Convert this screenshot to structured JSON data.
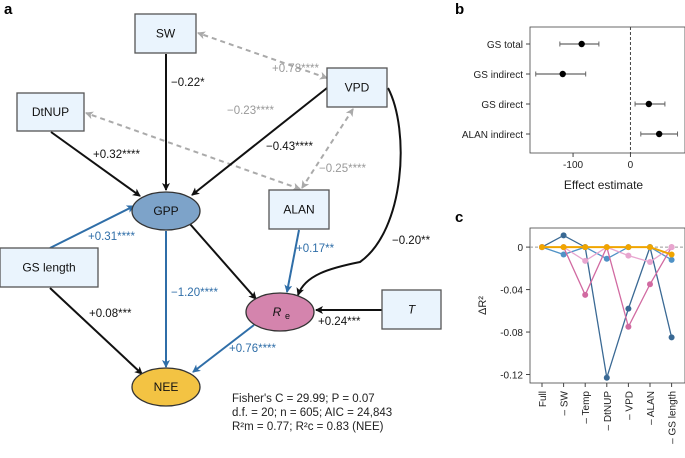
{
  "panels": {
    "a": "a",
    "b": "b",
    "c": "c"
  },
  "colors": {
    "black_path": "#111111",
    "blue_path": "#2f6ea8",
    "correlation_dashed": "#aaaaaa",
    "box_fill": "#eaf4fd",
    "gpp_fill": "#7da3c9",
    "re_fill": "#d484ad",
    "nee_fill": "#f3c343"
  },
  "diagram": {
    "nodes": {
      "sw": "SW",
      "dtnup": "DtNUP",
      "vpd": "VPD",
      "alan": "ALAN",
      "gs_length": "GS length",
      "t": "T",
      "gpp": "GPP",
      "re": "R",
      "re_sub": "e",
      "nee": "NEE"
    },
    "edges": {
      "sw_gpp": "−0.22*",
      "sw_vpd": "+0.78****",
      "dtnup_gpp": "+0.32****",
      "dtnup_alan": "−0.23****",
      "vpd_gpp": "−0.43****",
      "vpd_alan": "−0.25****",
      "vpd_re": "−0.20**",
      "alan_re": "+0.17**",
      "gs_gpp": "+0.31****",
      "gs_nee": "+0.08***",
      "gpp_nee": "−1.20****",
      "t_re": "+0.24***",
      "re_nee": "+0.76****"
    },
    "stats": {
      "line1": "Fisher's C = 29.99; P = 0.07",
      "line2": "d.f. = 20; n = 605; AIC = 24,843",
      "line3": "R²m = 0.77; R²c = 0.83 (NEE)"
    }
  },
  "chart_data": [
    {
      "type": "scatter",
      "panel": "b",
      "xlabel": "Effect estimate",
      "ylabel": "",
      "categories": [
        "GS total",
        "GS indirect",
        "GS direct",
        "ALAN indirect"
      ],
      "values": [
        -85,
        -118,
        32,
        50
      ],
      "ci_low": [
        -123,
        -165,
        8,
        18
      ],
      "ci_high": [
        -55,
        -78,
        60,
        82
      ],
      "xticks": [
        "-100",
        "0"
      ],
      "xlim": [
        -175,
        95
      ],
      "reference_line": 0,
      "grid": false
    },
    {
      "type": "line",
      "panel": "c",
      "ylabel": "ΔR²",
      "categories": [
        "Full",
        "– SW",
        "– Temp",
        "– DtNUP",
        "– VPD",
        "– ALAN",
        "– GS length"
      ],
      "yticks": [
        "0",
        "-0.04",
        "-0.08",
        "-0.12"
      ],
      "ylim": [
        -0.128,
        0.018
      ],
      "reference_line": 0,
      "grid": false,
      "series": [
        {
          "color": "#3a6994",
          "values": [
            0,
            0.011,
            0,
            -0.123,
            -0.058,
            0,
            -0.085
          ]
        },
        {
          "color": "#4f92c6",
          "values": [
            0,
            -0.007,
            0,
            -0.011,
            0,
            0,
            -0.012
          ]
        },
        {
          "color": "#d16aa1",
          "values": [
            0,
            0,
            -0.045,
            0,
            -0.075,
            -0.035,
            0
          ]
        },
        {
          "color": "#e8a5cf",
          "values": [
            0,
            0,
            -0.013,
            0,
            -0.008,
            -0.014,
            0
          ]
        },
        {
          "color": "#f0a500",
          "values": [
            0,
            0,
            0,
            0,
            0,
            0,
            -0.007
          ]
        }
      ]
    }
  ]
}
